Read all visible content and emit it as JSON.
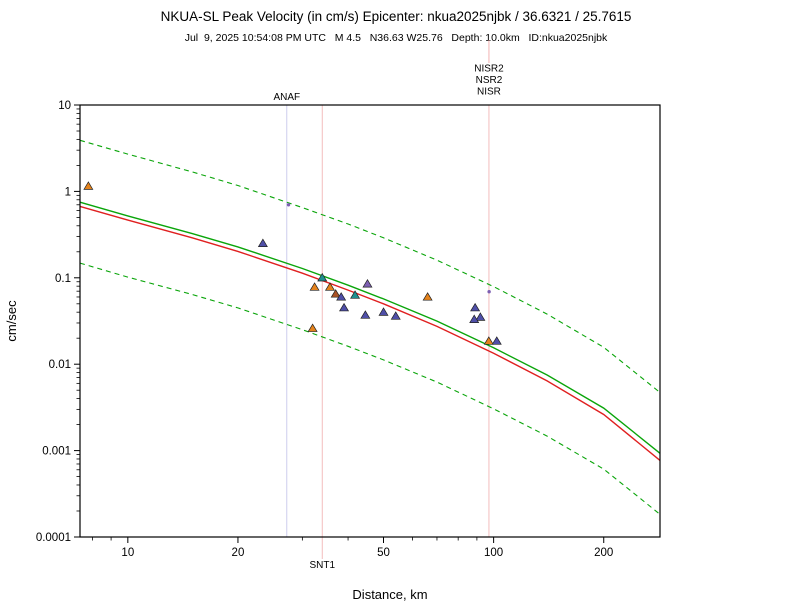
{
  "header": {
    "title": "NKUA-SL Peak Velocity (in cm/s) Epicenter: nkua2025njbk / 36.6321 / 25.7615",
    "subtitle": "Jul  9, 2025 10:54:08 PM UTC   M 4.5   N36.63 W25.76   Depth: 10.0km   ID:nkua2025njbk"
  },
  "chart_data": {
    "type": "scatter",
    "title": "NKUA-SL Peak Velocity (in cm/s) Epicenter: nkua2025njbk / 36.6321 / 25.7615",
    "xlabel": "Distance, km",
    "ylabel": "cm/sec",
    "xscale": "log",
    "yscale": "log",
    "xlim": [
      7.4,
      285
    ],
    "ylim": [
      0.0001,
      10
    ],
    "grid": false,
    "legend": "none",
    "x_ticks": [
      10,
      20,
      50,
      100,
      200
    ],
    "x_minor_ticks": [
      8,
      9,
      30,
      40,
      60,
      70,
      80,
      90
    ],
    "y_ticks": [
      10,
      1,
      0.1,
      0.01,
      0.001,
      0.0001
    ],
    "curves": [
      {
        "name": "upper-bound-dashed",
        "color": "#0aa50a",
        "style": "dashed",
        "points": [
          [
            7.4,
            3.9
          ],
          [
            10,
            2.7
          ],
          [
            15,
            1.68
          ],
          [
            20,
            1.17
          ],
          [
            30,
            0.65
          ],
          [
            40,
            0.42
          ],
          [
            50,
            0.29
          ],
          [
            70,
            0.16
          ],
          [
            100,
            0.079
          ],
          [
            140,
            0.038
          ],
          [
            200,
            0.0157
          ],
          [
            285,
            0.0047
          ]
        ]
      },
      {
        "name": "lower-bound-dashed",
        "color": "#0aa50a",
        "style": "dashed",
        "points": [
          [
            7.4,
            0.148
          ],
          [
            10,
            0.102
          ],
          [
            15,
            0.064
          ],
          [
            20,
            0.0448
          ],
          [
            30,
            0.0251
          ],
          [
            40,
            0.0161
          ],
          [
            50,
            0.0112
          ],
          [
            70,
            0.0062
          ],
          [
            100,
            0.00305
          ],
          [
            140,
            0.00147
          ],
          [
            200,
            0.00061
          ],
          [
            285,
            0.000183
          ]
        ]
      },
      {
        "name": "median-green",
        "color": "#0aa50a",
        "style": "solid",
        "points": [
          [
            7.4,
            0.75
          ],
          [
            10,
            0.52
          ],
          [
            15,
            0.325
          ],
          [
            20,
            0.228
          ],
          [
            30,
            0.128
          ],
          [
            40,
            0.082
          ],
          [
            50,
            0.057
          ],
          [
            70,
            0.0315
          ],
          [
            100,
            0.0155
          ],
          [
            140,
            0.0075
          ],
          [
            200,
            0.0031
          ],
          [
            285,
            0.00093
          ]
        ]
      },
      {
        "name": "median-red",
        "color": "#e02020",
        "style": "solid",
        "points": [
          [
            7.4,
            0.67
          ],
          [
            10,
            0.465
          ],
          [
            15,
            0.29
          ],
          [
            20,
            0.202
          ],
          [
            30,
            0.113
          ],
          [
            40,
            0.072
          ],
          [
            50,
            0.05
          ],
          [
            70,
            0.0274
          ],
          [
            100,
            0.0134
          ],
          [
            140,
            0.0064
          ],
          [
            200,
            0.00262
          ],
          [
            285,
            0.00077
          ]
        ]
      }
    ],
    "points": [
      {
        "x": 7.8,
        "y": 1.15,
        "color": "#e5831c",
        "marker": "triangle"
      },
      {
        "x": 23.4,
        "y": 0.25,
        "color": "#4f4fa8",
        "marker": "triangle"
      },
      {
        "x": 27.5,
        "y": 0.7,
        "color": "#7d5fb2",
        "marker": "dot"
      },
      {
        "x": 34.0,
        "y": 0.1,
        "color": "#1f8f8f",
        "marker": "triangle"
      },
      {
        "x": 32.4,
        "y": 0.078,
        "color": "#e5831c",
        "marker": "triangle"
      },
      {
        "x": 35.7,
        "y": 0.078,
        "color": "#e5831c",
        "marker": "triangle"
      },
      {
        "x": 37.0,
        "y": 0.065,
        "color": "#a85227",
        "marker": "triangle"
      },
      {
        "x": 38.3,
        "y": 0.06,
        "color": "#4f4fa8",
        "marker": "triangle"
      },
      {
        "x": 39.0,
        "y": 0.045,
        "color": "#4f4fa8",
        "marker": "triangle"
      },
      {
        "x": 32.0,
        "y": 0.026,
        "color": "#e5831c",
        "marker": "triangle"
      },
      {
        "x": 41.8,
        "y": 0.063,
        "color": "#1f8f8f",
        "marker": "triangle"
      },
      {
        "x": 44.6,
        "y": 0.037,
        "color": "#4f4fa8",
        "marker": "triangle"
      },
      {
        "x": 45.2,
        "y": 0.085,
        "color": "#7d5fb2",
        "marker": "triangle"
      },
      {
        "x": 50.0,
        "y": 0.04,
        "color": "#4f4fa8",
        "marker": "triangle"
      },
      {
        "x": 54.0,
        "y": 0.036,
        "color": "#4f4fa8",
        "marker": "triangle"
      },
      {
        "x": 66.0,
        "y": 0.06,
        "color": "#e5831c",
        "marker": "triangle"
      },
      {
        "x": 97.2,
        "y": 0.069,
        "color": "#7d5fb2",
        "marker": "dot"
      },
      {
        "x": 89.0,
        "y": 0.045,
        "color": "#4f4fa8",
        "marker": "triangle"
      },
      {
        "x": 92.0,
        "y": 0.035,
        "color": "#4f4fa8",
        "marker": "triangle"
      },
      {
        "x": 88.5,
        "y": 0.033,
        "color": "#4f4fa8",
        "marker": "triangle"
      },
      {
        "x": 97.0,
        "y": 0.0185,
        "color": "#e5831c",
        "marker": "triangle"
      },
      {
        "x": 102.0,
        "y": 0.0185,
        "color": "#4f4fa8",
        "marker": "triangle"
      }
    ],
    "stations": [
      {
        "code": "ANAF",
        "distance_km": 27.2,
        "label_pos": "top",
        "stack": 0,
        "label_color": "#7777cc",
        "line_color": "#bdbde8",
        "plot_line": true,
        "top_line": false
      },
      {
        "code": "SNT1",
        "distance_km": 34.0,
        "label_pos": "bottom",
        "stack": 0,
        "label_color": "#e06868",
        "line_color": "#f0aaaa",
        "plot_line": true,
        "top_line": false
      },
      {
        "code": "NISR",
        "distance_km": 97.1,
        "label_pos": "top",
        "stack": 0.5,
        "label_color": "#7777cc",
        "line_color": "#f0aaaa",
        "plot_line": true,
        "top_line": true
      },
      {
        "code": "NSR2",
        "distance_km": 97.1,
        "label_pos": "top",
        "stack": 1.5,
        "label_color": "#dd5555",
        "line_color": "#f0aaaa",
        "plot_line": false,
        "top_line": false
      },
      {
        "code": "NISR2",
        "distance_km": 97.1,
        "label_pos": "top",
        "stack": 2.5,
        "label_color": "#7777cc",
        "line_color": "#f0aaaa",
        "plot_line": false,
        "top_line": false
      }
    ],
    "colors": {
      "bound_green": "#0aa50a",
      "median_red": "#e02020",
      "station_blue": "#7777cc",
      "station_red": "#dd5555",
      "frame": "#000000"
    }
  }
}
